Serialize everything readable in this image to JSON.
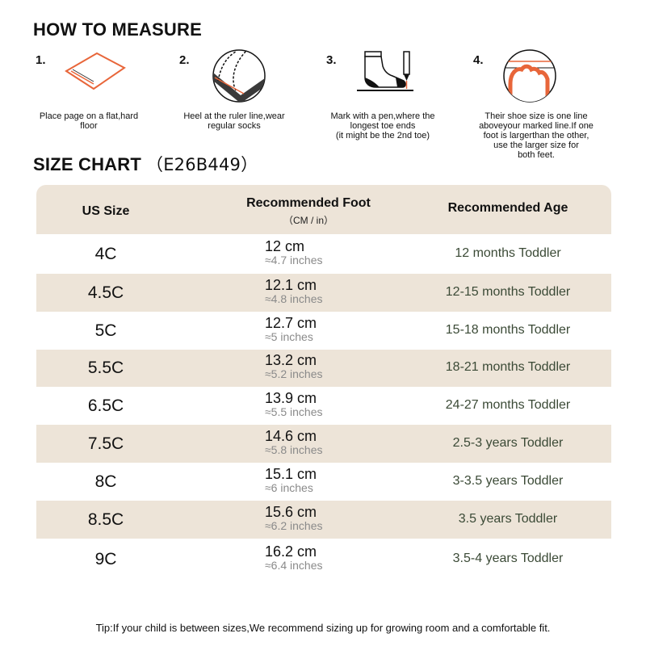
{
  "how_to_measure": {
    "title": "HOW TO MEASURE",
    "steps": [
      {
        "number": "1.",
        "caption": "Place page on a flat,hard\nfloor",
        "icon": "paper-on-floor-icon"
      },
      {
        "number": "2.",
        "caption": "Heel at the ruler line,wear\nregular socks",
        "icon": "heel-on-ruler-icon"
      },
      {
        "number": "3.",
        "caption": "Mark with a pen,where the\nlongest toe ends\n(it might be the 2nd toe)",
        "icon": "sock-and-pen-icon"
      },
      {
        "number": "4.",
        "caption": "Their shoe size is one line\naboveyour marked line.If one\nfoot is largerthan the other,\nuse the larger size for\nboth feet.",
        "icon": "toe-line-icon"
      }
    ]
  },
  "size_chart": {
    "title": "SIZE CHART",
    "code": "（E26B449）",
    "headers": {
      "us_size": "US Size",
      "foot": "Recommended Foot",
      "foot_sub": "（CM / in）",
      "age": "Recommended Age"
    },
    "rows": [
      {
        "us": "4C",
        "cm": "12 cm",
        "in": "≈4.7 inches",
        "age": "12 months Toddler"
      },
      {
        "us": "4.5C",
        "cm": "12.1 cm",
        "in": "≈4.8 inches",
        "age": "12-15 months Toddler"
      },
      {
        "us": "5C",
        "cm": "12.7 cm",
        "in": "≈5 inches",
        "age": "15-18 months Toddler"
      },
      {
        "us": "5.5C",
        "cm": "13.2 cm",
        "in": "≈5.2 inches",
        "age": "18-21 months Toddler"
      },
      {
        "us": "6.5C",
        "cm": "13.9 cm",
        "in": "≈5.5 inches",
        "age": "24-27 months Toddler"
      },
      {
        "us": "7.5C",
        "cm": "14.6 cm",
        "in": "≈5.8 inches",
        "age": "2.5-3 years Toddler"
      },
      {
        "us": "8C",
        "cm": "15.1 cm",
        "in": "≈6 inches",
        "age": "3-3.5 years Toddler"
      },
      {
        "us": "8.5C",
        "cm": "15.6 cm",
        "in": "≈6.2 inches",
        "age": "3.5 years Toddler"
      },
      {
        "us": "9C",
        "cm": "16.2 cm",
        "in": "≈6.4 inches",
        "age": "3.5-4 years Toddler"
      }
    ]
  },
  "tip": "Tip:If your child is between sizes,We recommend sizing up for growing room and a comfortable fit.",
  "colors": {
    "header_bg": "#ede4d8",
    "stripe_bg": "#ede4d8",
    "accent_orange": "#e8663a",
    "age_text": "#3b4a36",
    "inches_text": "#8a8a8a"
  }
}
